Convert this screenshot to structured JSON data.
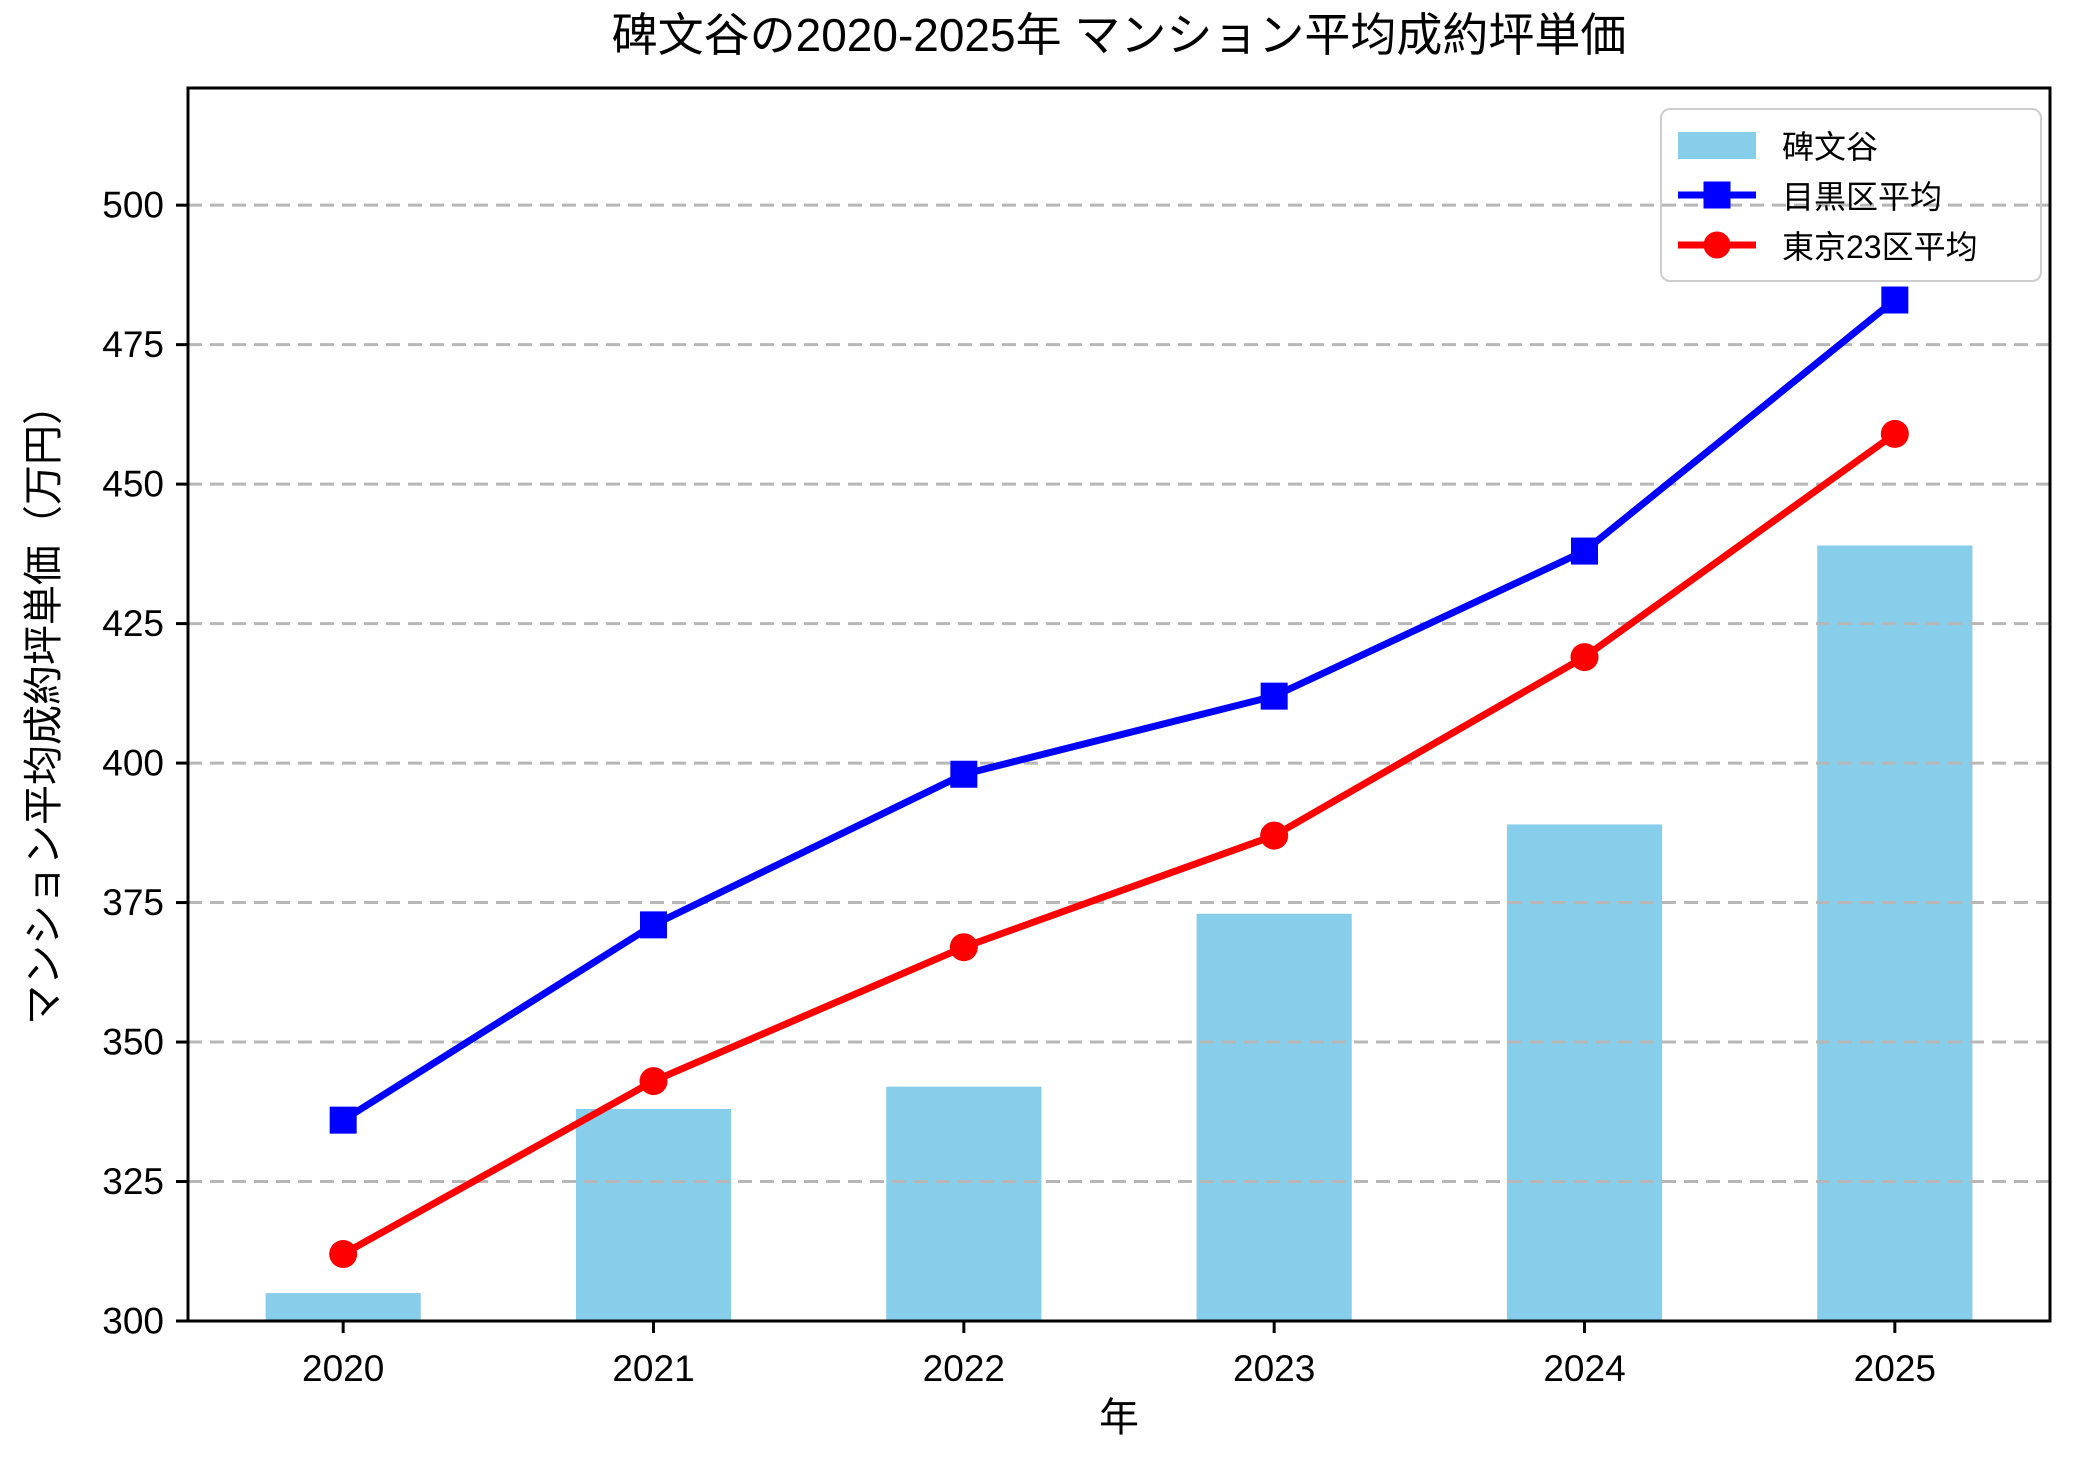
{
  "chart_data": {
    "type": "bar",
    "title": "碑文谷の2020-2025年 マンション平均成約坪単価",
    "xlabel": "年",
    "ylabel": "マンション平均成約坪単価（万円）",
    "categories": [
      "2020",
      "2021",
      "2022",
      "2023",
      "2024",
      "2025"
    ],
    "bar_series": {
      "name": "碑文谷",
      "slug": "himonya",
      "color": "#87ceeb",
      "values": [
        305,
        338,
        342,
        373,
        389,
        439
      ]
    },
    "line_series": [
      {
        "name": "目黒区平均",
        "slug": "meguro-avg",
        "color": "#0000ff",
        "marker": "square",
        "values": [
          336,
          371,
          398,
          412,
          438,
          483
        ]
      },
      {
        "name": "東京23区平均",
        "slug": "tokyo23-avg",
        "color": "#ff0000",
        "marker": "circle",
        "values": [
          312,
          343,
          367,
          387,
          419,
          459
        ]
      }
    ],
    "ylim": [
      300,
      521
    ],
    "y_ticks": [
      300,
      325,
      350,
      375,
      400,
      425,
      450,
      475,
      500
    ],
    "grid": {
      "axis": "y",
      "style": "dashed",
      "color": "#b7b7b7"
    },
    "legend": {
      "position": "upper-right",
      "border_color": "#cdcdcd"
    },
    "axis_color": "#000000"
  }
}
